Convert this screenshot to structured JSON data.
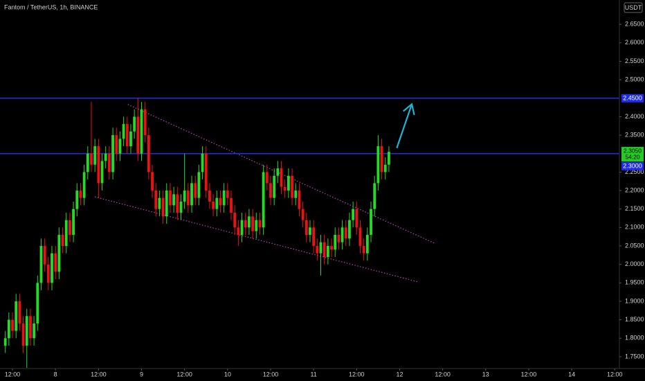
{
  "chart_data": {
    "type": "candlestick",
    "title": "Fantom / TetherUS, 1h, BINANCE",
    "currency": "USDT",
    "up_color": "#22dd22",
    "down_color": "#ee1111",
    "xlim": [
      8.52,
      181.3
    ],
    "ylim": [
      1.718,
      2.716
    ],
    "xticks": [
      {
        "value": 12,
        "label": "12:00"
      },
      {
        "value": 24,
        "label": "8"
      },
      {
        "value": 36,
        "label": "12:00"
      },
      {
        "value": 48,
        "label": "9"
      },
      {
        "value": 60,
        "label": "12:00"
      },
      {
        "value": 72,
        "label": "10"
      },
      {
        "value": 84,
        "label": "12:00"
      },
      {
        "value": 96,
        "label": "11"
      },
      {
        "value": 108,
        "label": "12:00"
      },
      {
        "value": 120,
        "label": "12"
      },
      {
        "value": 132,
        "label": "12:00"
      },
      {
        "value": 144,
        "label": "13"
      },
      {
        "value": 156,
        "label": "12:00"
      },
      {
        "value": 168,
        "label": "14"
      },
      {
        "value": 180,
        "label": "12:00"
      }
    ],
    "yticks": [
      {
        "value": 1.75,
        "label": "1.7500"
      },
      {
        "value": 1.8,
        "label": "1.8000"
      },
      {
        "value": 1.85,
        "label": "1.8500"
      },
      {
        "value": 1.9,
        "label": "1.9000"
      },
      {
        "value": 1.95,
        "label": "1.9500"
      },
      {
        "value": 2.0,
        "label": "2.0000"
      },
      {
        "value": 2.05,
        "label": "2.0500"
      },
      {
        "value": 2.1,
        "label": "2.1000"
      },
      {
        "value": 2.15,
        "label": "2.1500"
      },
      {
        "value": 2.2,
        "label": "2.2000"
      },
      {
        "value": 2.25,
        "label": "2.2500"
      },
      {
        "value": 2.35,
        "label": "2.3500"
      },
      {
        "value": 2.4,
        "label": "2.4000"
      },
      {
        "value": 2.5,
        "label": "2.5000"
      },
      {
        "value": 2.55,
        "label": "2.5500"
      },
      {
        "value": 2.6,
        "label": "2.6000"
      },
      {
        "value": 2.65,
        "label": "2.6500"
      }
    ],
    "x": [
      10,
      11,
      12,
      13,
      14,
      15,
      16,
      17,
      18,
      19,
      20,
      21,
      22,
      23,
      24,
      25,
      26,
      27,
      28,
      29,
      30,
      31,
      32,
      33,
      34,
      35,
      36,
      37,
      38,
      39,
      40,
      41,
      42,
      43,
      44,
      45,
      46,
      47,
      48,
      49,
      50,
      51,
      52,
      53,
      54,
      55,
      56,
      57,
      58,
      59,
      60,
      61,
      62,
      63,
      64,
      65,
      66,
      67,
      68,
      69,
      70,
      71,
      72,
      73,
      74,
      75,
      76,
      77,
      78,
      79,
      80,
      81,
      82,
      83,
      84,
      85,
      86,
      87,
      88,
      89,
      90,
      91,
      92,
      93,
      94,
      95,
      96,
      97,
      98,
      99,
      100,
      101,
      102,
      103,
      104,
      105,
      106,
      107,
      108,
      109,
      110,
      111,
      112,
      113,
      114,
      115,
      116,
      117
    ],
    "open": [
      1.78,
      1.8,
      1.85,
      1.82,
      1.9,
      1.84,
      1.78,
      1.86,
      1.8,
      1.84,
      1.95,
      2.05,
      2.0,
      1.95,
      2.03,
      1.98,
      2.08,
      2.05,
      2.12,
      2.08,
      2.15,
      2.2,
      2.18,
      2.25,
      2.3,
      2.27,
      2.32,
      2.22,
      2.28,
      2.3,
      2.25,
      2.35,
      2.3,
      2.34,
      2.38,
      2.32,
      2.36,
      2.4,
      2.3,
      2.42,
      2.35,
      2.25,
      2.2,
      2.15,
      2.18,
      2.13,
      2.2,
      2.16,
      2.19,
      2.14,
      2.17,
      2.2,
      2.16,
      2.22,
      2.18,
      2.25,
      2.3,
      2.2,
      2.17,
      2.15,
      2.18,
      2.16,
      2.2,
      2.18,
      2.14,
      2.1,
      2.08,
      2.12,
      2.1,
      2.13,
      2.09,
      2.12,
      2.1,
      2.25,
      2.22,
      2.18,
      2.24,
      2.26,
      2.21,
      2.2,
      2.24,
      2.18,
      2.2,
      2.15,
      2.12,
      2.08,
      2.1,
      2.05,
      2.03,
      2.06,
      2.02,
      2.05,
      2.04,
      2.08,
      2.06,
      2.1,
      2.07,
      2.12,
      2.15,
      2.1,
      2.05,
      2.03,
      2.08,
      2.15,
      2.22,
      2.32,
      2.25,
      2.27
    ],
    "high": [
      1.82,
      1.87,
      1.87,
      1.92,
      1.92,
      1.86,
      1.88,
      1.88,
      1.86,
      1.97,
      2.07,
      2.07,
      2.02,
      2.05,
      2.05,
      2.1,
      2.1,
      2.14,
      2.14,
      2.17,
      2.22,
      2.22,
      2.27,
      2.32,
      2.44,
      2.34,
      2.34,
      2.3,
      2.32,
      2.32,
      2.37,
      2.37,
      2.36,
      2.4,
      2.4,
      2.38,
      2.42,
      2.45,
      2.44,
      2.44,
      2.37,
      2.27,
      2.22,
      2.2,
      2.2,
      2.22,
      2.22,
      2.21,
      2.21,
      2.19,
      2.3,
      2.22,
      2.24,
      2.24,
      2.27,
      2.32,
      2.32,
      2.22,
      2.19,
      2.2,
      2.2,
      2.22,
      2.22,
      2.2,
      2.16,
      2.12,
      2.14,
      2.14,
      2.15,
      2.15,
      2.14,
      2.14,
      2.27,
      2.27,
      2.24,
      2.26,
      2.28,
      2.28,
      2.23,
      2.26,
      2.26,
      2.22,
      2.22,
      2.17,
      2.14,
      2.12,
      2.12,
      2.07,
      2.08,
      2.08,
      2.07,
      2.07,
      2.1,
      2.1,
      2.12,
      2.12,
      2.14,
      2.17,
      2.17,
      2.12,
      2.07,
      2.1,
      2.17,
      2.24,
      2.35,
      2.34,
      2.29,
      2.32
    ],
    "low": [
      1.76,
      1.78,
      1.8,
      1.8,
      1.82,
      1.76,
      1.72,
      1.78,
      1.78,
      1.82,
      1.93,
      1.98,
      1.93,
      1.93,
      1.96,
      1.96,
      2.03,
      2.03,
      2.06,
      2.06,
      2.13,
      2.16,
      2.16,
      2.23,
      2.25,
      2.25,
      2.18,
      2.2,
      2.26,
      2.23,
      2.23,
      2.28,
      2.28,
      2.32,
      2.3,
      2.3,
      2.34,
      2.28,
      2.28,
      2.33,
      2.23,
      2.18,
      2.13,
      2.13,
      2.11,
      2.11,
      2.14,
      2.14,
      2.12,
      2.12,
      2.15,
      2.14,
      2.14,
      2.16,
      2.16,
      2.23,
      2.18,
      2.15,
      2.13,
      2.13,
      2.14,
      2.14,
      2.16,
      2.12,
      2.08,
      2.05,
      2.06,
      2.08,
      2.08,
      2.07,
      2.07,
      2.08,
      2.08,
      2.2,
      2.16,
      2.16,
      2.22,
      2.19,
      2.18,
      2.18,
      2.16,
      2.16,
      2.13,
      2.1,
      2.06,
      2.06,
      2.03,
      2.01,
      1.97,
      2.0,
      2.0,
      2.02,
      2.02,
      2.04,
      2.04,
      2.05,
      2.05,
      2.1,
      2.08,
      2.03,
      2.01,
      2.01,
      2.06,
      2.13,
      2.2,
      2.23,
      2.23,
      2.25
    ],
    "close": [
      1.8,
      1.85,
      1.82,
      1.9,
      1.84,
      1.78,
      1.86,
      1.8,
      1.84,
      1.95,
      2.05,
      2.0,
      1.95,
      2.03,
      1.98,
      2.08,
      2.05,
      2.12,
      2.08,
      2.15,
      2.2,
      2.18,
      2.25,
      2.3,
      2.27,
      2.32,
      2.22,
      2.28,
      2.3,
      2.25,
      2.35,
      2.3,
      2.34,
      2.38,
      2.32,
      2.36,
      2.4,
      2.3,
      2.42,
      2.35,
      2.25,
      2.2,
      2.15,
      2.18,
      2.13,
      2.2,
      2.16,
      2.19,
      2.14,
      2.17,
      2.2,
      2.16,
      2.22,
      2.18,
      2.25,
      2.3,
      2.2,
      2.17,
      2.15,
      2.18,
      2.16,
      2.2,
      2.18,
      2.14,
      2.1,
      2.08,
      2.12,
      2.1,
      2.13,
      2.09,
      2.12,
      2.1,
      2.25,
      2.22,
      2.18,
      2.24,
      2.26,
      2.21,
      2.2,
      2.24,
      2.18,
      2.2,
      2.15,
      2.12,
      2.08,
      2.1,
      2.05,
      2.03,
      2.06,
      2.02,
      2.05,
      2.04,
      2.08,
      2.06,
      2.1,
      2.07,
      2.12,
      2.15,
      2.1,
      2.05,
      2.03,
      2.08,
      2.15,
      2.22,
      2.32,
      2.25,
      2.27,
      2.305
    ],
    "hlines": [
      {
        "value": 2.45,
        "label": "2.4500",
        "color": "#1e2cf0"
      },
      {
        "value": 2.3,
        "label": "2.3000",
        "color": "#1e2cf0"
      }
    ],
    "price_line": {
      "value": 2.305,
      "label": "2.3050",
      "countdown": "54:20"
    },
    "trendlines": [
      {
        "x": [
          44.2,
          129.8
        ],
        "y": [
          2.433,
          2.057
        ],
        "color": "#c040c0"
      },
      {
        "x": [
          35.0,
          125.0
        ],
        "y": [
          2.183,
          1.953
        ],
        "color": "#c040c0"
      }
    ],
    "arrow": {
      "x": [
        119.2,
        123.4
      ],
      "y": [
        2.315,
        2.434
      ],
      "color": "#1ab6d6"
    }
  }
}
